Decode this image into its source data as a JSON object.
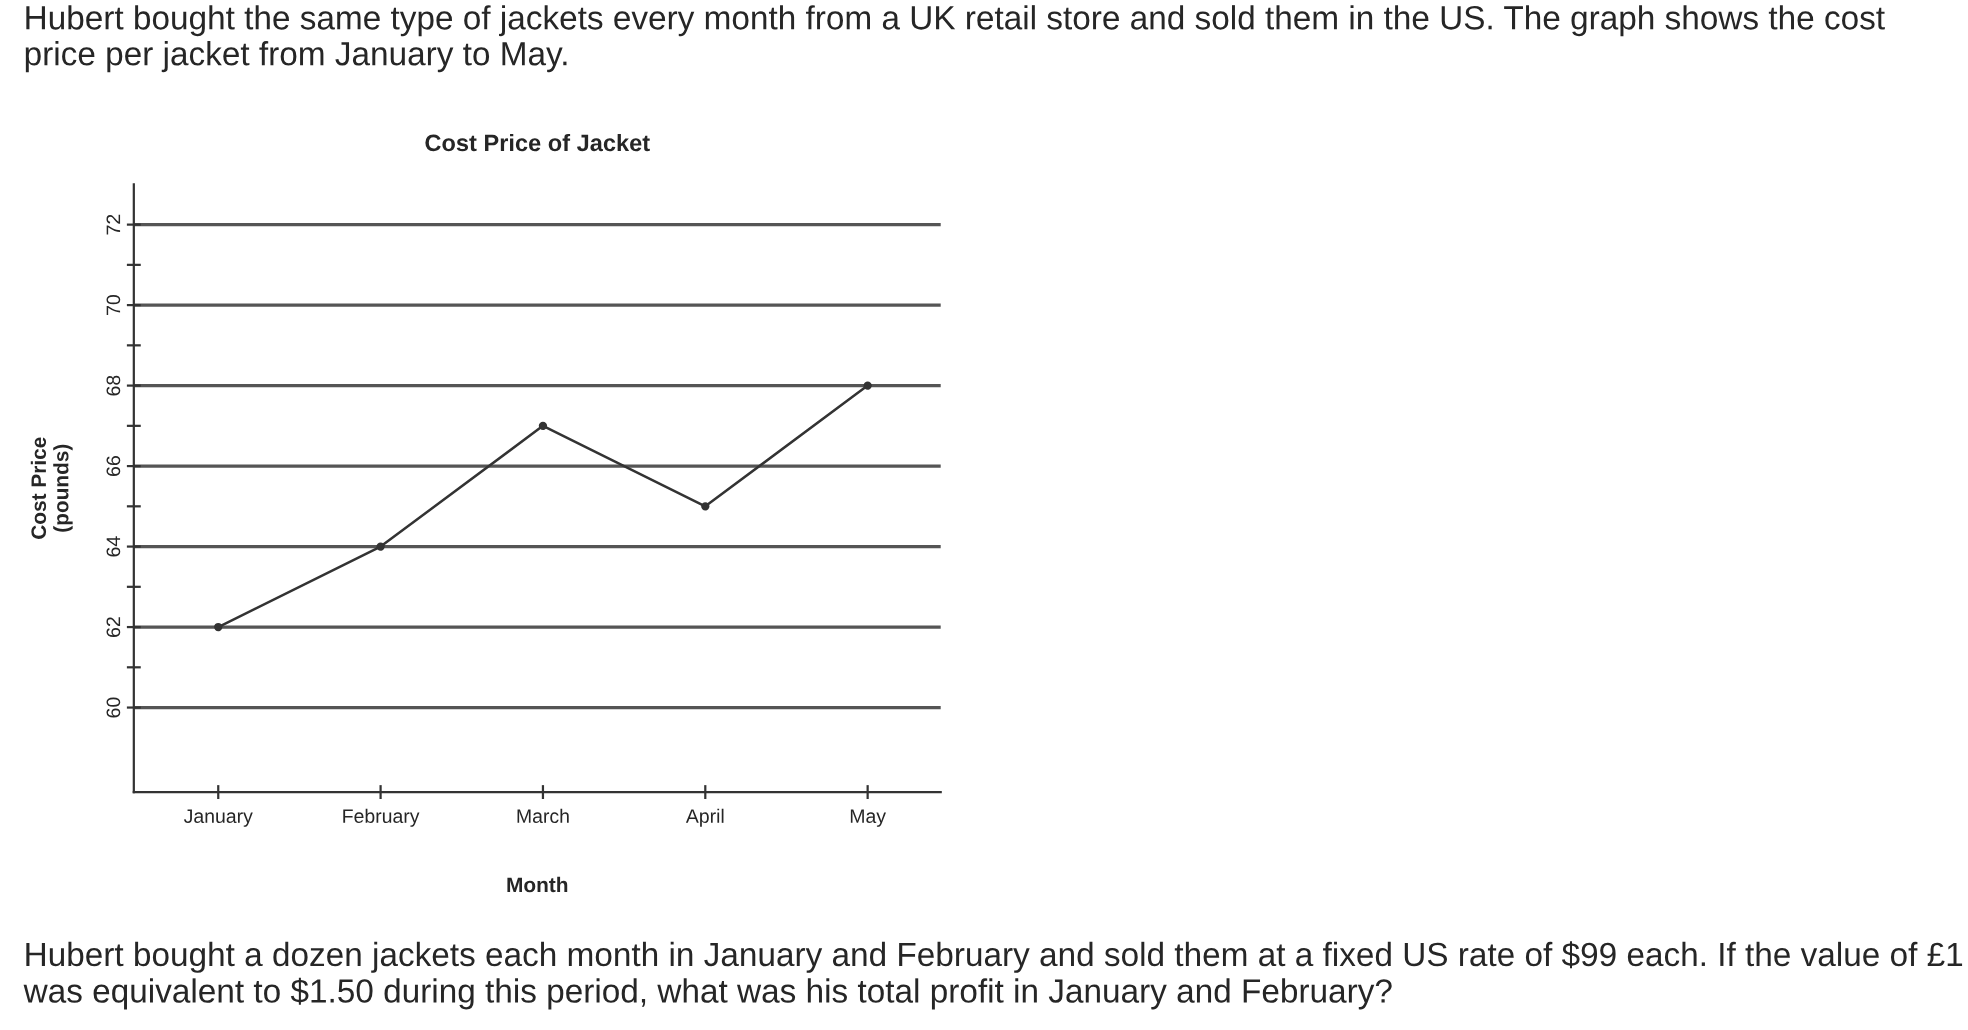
{
  "chart_data": {
    "type": "line",
    "title": "Cost Price of Jacket",
    "xlabel": "Month",
    "ylabel": "Cost Price\n(pounds)",
    "categories": [
      "January",
      "February",
      "March",
      "April",
      "May"
    ],
    "series": [
      {
        "color": "#333333",
        "values": [
          62,
          64,
          67,
          65,
          68
        ]
      }
    ],
    "ylim": [
      57.9,
      73
    ],
    "yticks": [
      60,
      {
        "value": 61,
        "label": null
      },
      62,
      {
        "value": 63,
        "label": null
      },
      64,
      {
        "value": 65,
        "label": null
      },
      66,
      {
        "value": 67,
        "label": null
      },
      68,
      {
        "value": 69,
        "label": null
      },
      70,
      {
        "value": 71,
        "label": null
      },
      72
    ],
    "grid": "y",
    "marker": "circle",
    "line_style": "solid",
    "legend": false,
    "annotations": [
      "Hubert bought the same type of jackets every month from a UK retail store and sold them in the US. The graph shows the cost price per jacket from January to May.",
      "Hubert bought a dozen jackets each month in January and February and sold them at a fixed US rate of $99 each. If the value of £1 was equivalent to $1.50 during this period, what was his total profit in January and February?"
    ]
  }
}
